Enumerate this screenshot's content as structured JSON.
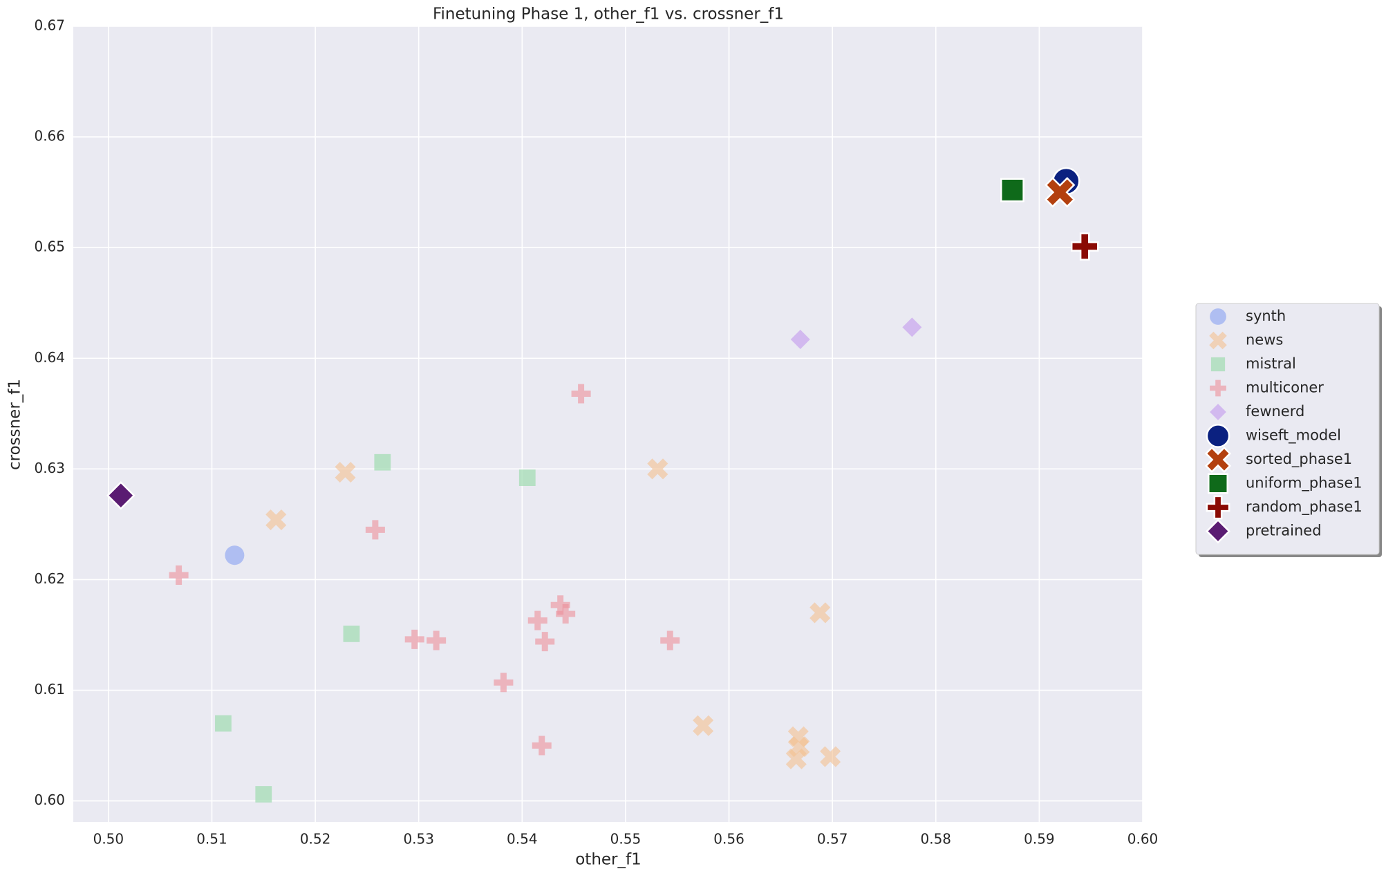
{
  "chart_data": {
    "type": "scatter",
    "title": "Finetuning Phase 1, other_f1 vs. crossner_f1",
    "x_label": "other_f1",
    "y_label": "crossner_f1",
    "xlim": [
      0.4966,
      0.6
    ],
    "ylim": [
      0.5981,
      0.67
    ],
    "xticks": [
      {
        "value": 0.5,
        "label": "0.50"
      },
      0.51,
      0.52,
      0.53,
      0.54,
      0.55,
      0.56,
      0.57,
      0.58,
      0.59,
      {
        "value": 0.6,
        "label": "0.60"
      }
    ],
    "yticks": [
      {
        "value": 0.6,
        "label": "0.60"
      },
      0.61,
      0.62,
      0.63,
      0.64,
      0.65,
      0.66,
      0.67
    ],
    "grid": true,
    "legend": "right",
    "series": [
      {
        "name": "synth",
        "color": "#a4b6f2",
        "marker": "circle",
        "alpha": 0.85,
        "size": "small",
        "x": [
          0.5122
        ],
        "values": [
          0.6222
        ]
      },
      {
        "name": "news",
        "color": "#f3bf90",
        "marker": "x",
        "alpha": 0.6,
        "size": "small",
        "x": [
          0.5229,
          0.5162,
          0.5531,
          0.5688,
          0.5575,
          0.5667,
          0.5668,
          0.5665,
          0.5698
        ],
        "values": [
          0.6297,
          0.6254,
          0.63,
          0.617,
          0.6068,
          0.6058,
          0.6049,
          0.6038,
          0.604
        ]
      },
      {
        "name": "mistral",
        "color": "#9fdcb0",
        "marker": "square",
        "alpha": 0.7,
        "size": "small",
        "x": [
          0.5265,
          0.5405,
          0.5235,
          0.5111,
          0.515
        ],
        "values": [
          0.6306,
          0.6292,
          0.6151,
          0.607,
          0.6006
        ]
      },
      {
        "name": "multiconer",
        "color": "#ec8f9a",
        "marker": "plus",
        "alpha": 0.6,
        "size": "small",
        "x": [
          0.5457,
          0.5258,
          0.5068,
          0.5437,
          0.5442,
          0.5415,
          0.5296,
          0.5317,
          0.5422,
          0.5543,
          0.5382,
          0.5419
        ],
        "values": [
          0.6368,
          0.6245,
          0.6204,
          0.6177,
          0.6169,
          0.6163,
          0.6146,
          0.6145,
          0.6144,
          0.6145,
          0.6107,
          0.605
        ]
      },
      {
        "name": "fewnerd",
        "color": "#c9a8ee",
        "marker": "diamond",
        "alpha": 0.75,
        "size": "small",
        "x": [
          0.5669,
          0.5777
        ],
        "values": [
          0.6417,
          0.6428
        ]
      },
      {
        "name": "wiseft_model",
        "color": "#0b2180",
        "marker": "circle",
        "alpha": 1,
        "size": "large",
        "x": [
          0.5926
        ],
        "values": [
          0.656
        ]
      },
      {
        "name": "sorted_phase1",
        "color": "#b3400f",
        "marker": "x",
        "alpha": 1,
        "size": "large",
        "x": [
          0.592
        ],
        "values": [
          0.655
        ]
      },
      {
        "name": "uniform_phase1",
        "color": "#0f6a1a",
        "marker": "square",
        "alpha": 1,
        "size": "large",
        "x": [
          0.5874
        ],
        "values": [
          0.6552
        ]
      },
      {
        "name": "random_phase1",
        "color": "#8a0a04",
        "marker": "plus",
        "alpha": 1,
        "size": "large",
        "x": [
          0.5944
        ],
        "values": [
          0.6501
        ]
      },
      {
        "name": "pretrained",
        "color": "#5a1c72",
        "marker": "diamond",
        "alpha": 1,
        "size": "large",
        "x": [
          0.5012
        ],
        "values": [
          0.6276
        ]
      }
    ]
  }
}
